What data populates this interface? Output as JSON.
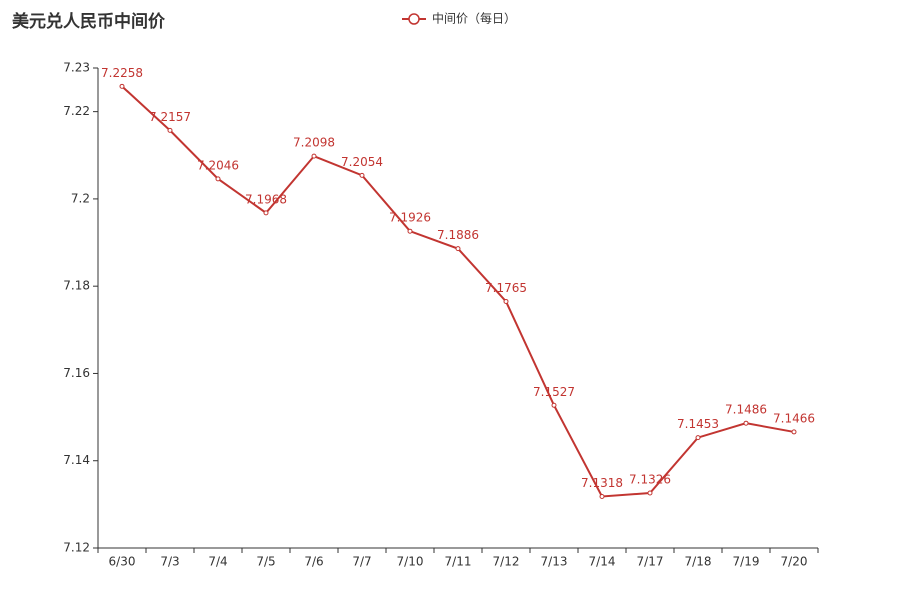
{
  "chart_data": {
    "type": "line",
    "title": "美元兑人民币中间价",
    "categories": [
      "6/30",
      "7/3",
      "7/4",
      "7/5",
      "7/6",
      "7/7",
      "7/10",
      "7/11",
      "7/12",
      "7/13",
      "7/14",
      "7/17",
      "7/18",
      "7/19",
      "7/20"
    ],
    "series": [
      {
        "name": "中间价（每日）",
        "color": "#c23531",
        "values": [
          7.2258,
          7.2157,
          7.2046,
          7.1968,
          7.2098,
          7.2054,
          7.1926,
          7.1886,
          7.1765,
          7.1527,
          7.1318,
          7.1326,
          7.1453,
          7.1486,
          7.1466
        ]
      }
    ],
    "ylim": [
      7.12,
      7.23
    ],
    "yticks": [
      7.12,
      7.14,
      7.16,
      7.18,
      7.2,
      7.22,
      7.23
    ],
    "grid": false,
    "legend": "top"
  }
}
